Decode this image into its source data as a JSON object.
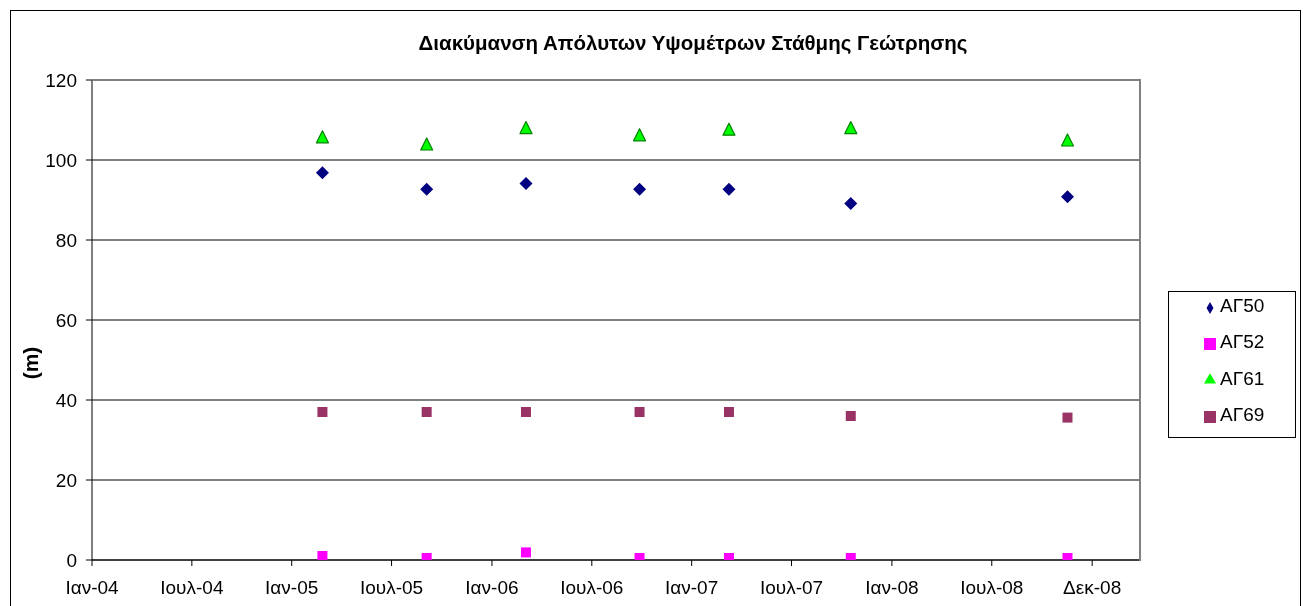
{
  "chart_data": {
    "type": "scatter",
    "title": "Διακύμανση Απόλυτων Υψομέτρων Στάθμης Γεώτρησης",
    "ylabel": "(m)",
    "x": [
      "2005-02-27",
      "2005-09-05",
      "2006-03-05",
      "2006-09-28",
      "2007-03-10",
      "2007-10-18",
      "2008-11-16"
    ],
    "series": [
      {
        "name": "ΑΓ50",
        "color": "#000080",
        "marker": "diamond",
        "values": [
          96.8,
          92.7,
          94.1,
          92.7,
          92.7,
          89.1,
          90.8
        ]
      },
      {
        "name": "ΑΓ52",
        "color": "#ff00ff",
        "marker": "square",
        "values": [
          1,
          0.5,
          1.9,
          0.5,
          0.5,
          0.5,
          0.5
        ]
      },
      {
        "name": "ΑΓ61",
        "color": "#00ff00",
        "marker": "triangle",
        "values": [
          105.8,
          104,
          108.1,
          106.3,
          107.7,
          108.1,
          105
        ]
      },
      {
        "name": "ΑΓ69",
        "color": "#993366",
        "marker": "square",
        "values": [
          37,
          37,
          37,
          37,
          37,
          36,
          35.6
        ]
      }
    ],
    "xlim": [
      "2004-01-04",
      "2009-03-30"
    ],
    "xticks": [
      {
        "value": "2004-01-04",
        "label": "Ιαν-04"
      },
      {
        "value": "2004-07-04",
        "label": "Ιουλ-04"
      },
      {
        "value": "2005-01-02",
        "label": "Ιαν-05"
      },
      {
        "value": "2005-07-03",
        "label": "Ιουλ-05"
      },
      {
        "value": "2006-01-02",
        "label": "Ιαν-06"
      },
      {
        "value": "2006-07-03",
        "label": "Ιουλ-06"
      },
      {
        "value": "2007-01-01",
        "label": "Ιαν-07"
      },
      {
        "value": "2007-07-02",
        "label": "Ιουλ-07"
      },
      {
        "value": "2008-01-01",
        "label": "Ιαν-08"
      },
      {
        "value": "2008-07-01",
        "label": "Ιουλ-08"
      },
      {
        "value": "2008-12-31",
        "label": "Δεκ-08"
      }
    ],
    "ylim": [
      0,
      120
    ],
    "yticks": [
      0,
      20,
      40,
      60,
      80,
      100,
      120
    ],
    "grid": "y",
    "legend": "right"
  }
}
